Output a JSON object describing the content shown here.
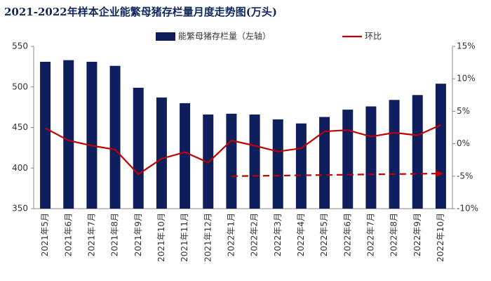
{
  "chart_data": {
    "type": "bar_line",
    "title": "2021-2022年样本企业能繁母猪存栏量月度走势图(万头)",
    "categories": [
      "2021年5月",
      "2021年6月",
      "2021年7月",
      "2021年8月",
      "2021年9月",
      "2021年10月",
      "2021年11月",
      "2021年12月",
      "2022年1月",
      "2022年2月",
      "2022年3月",
      "2022年4月",
      "2022年5月",
      "2022年6月",
      "2022年7月",
      "2022年8月",
      "2022年9月",
      "2022年10月"
    ],
    "series": [
      {
        "name": "能繁母猪存栏量（左轴）",
        "type": "bar",
        "color": "#0f1f5e",
        "values": [
          531,
          533,
          531,
          526,
          499,
          487,
          480,
          466,
          467,
          466,
          460,
          455,
          463,
          472,
          476,
          484,
          490,
          504
        ]
      },
      {
        "name": "环比",
        "type": "line",
        "axis": "y2",
        "color": "#c00000",
        "values": [
          2.4,
          0.5,
          -0.3,
          -0.9,
          -4.7,
          -2.3,
          -1.3,
          -2.9,
          0.5,
          -0.3,
          -1.2,
          -0.7,
          1.9,
          2.1,
          1.1,
          1.7,
          1.3,
          2.9
        ]
      }
    ],
    "trend": {
      "categories": [
        "2022年1月",
        "2022年10月"
      ],
      "values": [
        -5.0,
        -4.6
      ],
      "color": "#c00000"
    },
    "ylim": [
      350,
      550
    ],
    "yticks": [
      350,
      400,
      450,
      500,
      550
    ],
    "y2lim": [
      -10,
      15
    ],
    "y2ticks": [
      {
        "value": -10,
        "label": "-10%"
      },
      {
        "value": -5,
        "label": "-5%"
      },
      {
        "value": 0,
        "label": "0%"
      },
      {
        "value": 5,
        "label": "5%"
      },
      {
        "value": 10,
        "label": "10%"
      },
      {
        "value": 15,
        "label": "15%"
      }
    ],
    "grid": false
  }
}
